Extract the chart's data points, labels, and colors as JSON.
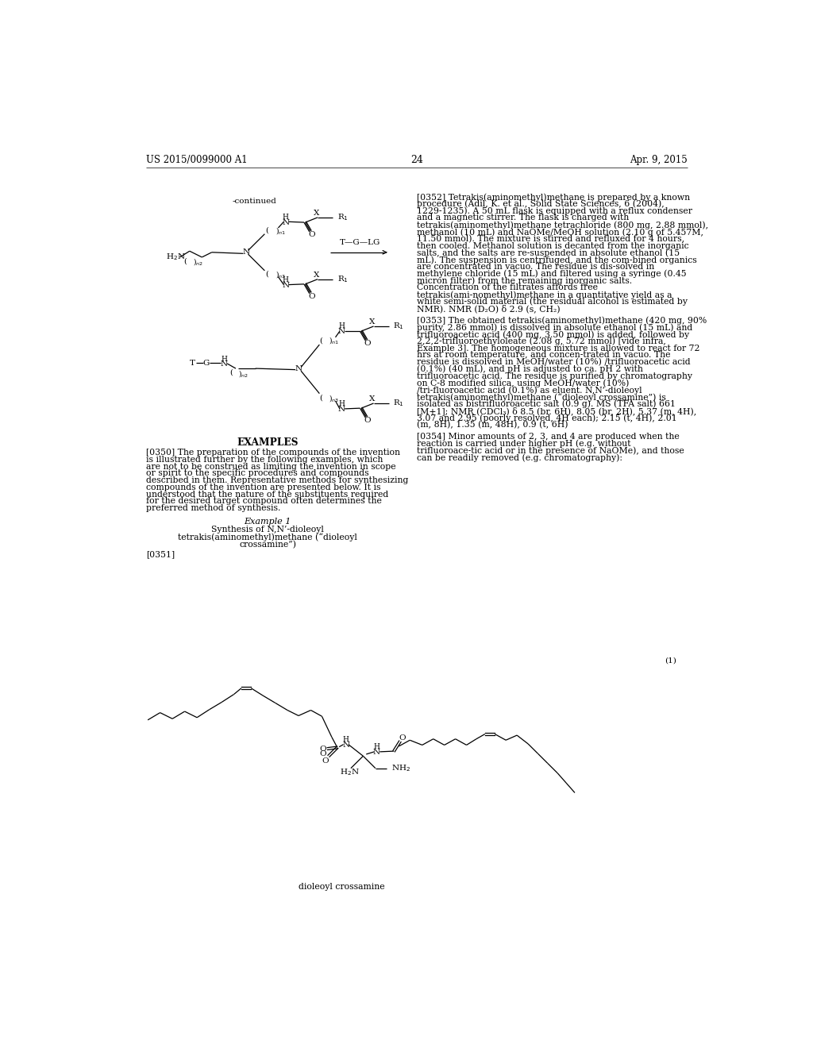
{
  "background_color": "#ffffff",
  "page_number": "24",
  "header_left": "US 2015/0099000 A1",
  "header_right": "Apr. 9, 2015",
  "para_0352": "[0352]   Tetrakis(aminomethyl)methane is prepared by a known procedure (Adil, K. et al., Solid State Sciences, 6 (2004), 1229-1235). A 50 mL flask is equipped with a reflux condenser and a magnetic stirrer. The flask is charged with tetrakis(aminomethyl)methane tetrachloride (800 mg, 2.88 mmol), methanol (10 mL) and NaOMe/MeOH solution (2.10 g of 5.457M, 11.50 mmol). The mixture is stirred and refluxed for 4 hours, then cooled. Methanol solution is decanted from the inorganic salts, and the salts are re-suspended in absolute ethanol (15 mL). The suspension is centrifuged, and the com-bined organics are concentrated in vacuo. The residue is dis-solved in methylene chloride (15 mL) and filtered using a syringe (0.45 micron filter) from the remaining inorganic salts. Concentration of the filtrates affords free tetrakis(ami-nomethyl)methane in a quantitative yield as a white semi-solid material (the residual alcohol is estimated by NMR). NMR (D₂O) δ 2.9 (s, CH₂)",
  "para_0353": "[0353]   The obtained tetrakis(aminomethyl)methane (420 mg, 90% purity, 2.86 mmol) is dissolved in absolute ethanol (15 mL) and trifluoroacetic acid (400 mg, 3.50 mmol) is added, followed by 2,2,2-trifluoroethyloleate (2.08 g, 5.72 mmol) [vide infra, Example 3]. The homogeneous mixture is allowed to react for 72 hrs at room temperature, and concen-trated in vacuo. The residue is dissolved in MeOH/water (10%) /trifluoroacetic acid (0.1%) (40 mL), and pH is adjusted to ca. pH 2 with trifluoroacetic acid. The residue is purified by chromatography on C-8 modified silica, using MeOH/water (10%) /tri-fluoroacetic acid (0.1%) as eluent. N,N’-dioleoyl  tetrakis(aminomethyl)methane (“dioleoyl crossamine”) is isolated as bistrifluoroacetic salt (0.9 g). MS (TFA salt) 661 [M+1]; NMR (CDCl₃) δ 8.5 (br. 6H), 8.05 (br, 2H), 5.37 (m, 4H), 3.07 and 2.95 (poorly resolved, 4H each); 2.15 (t, 4H), 2.01 (m, 8H), 1.35 (m, 48H), 0.9 (t, 6H)",
  "para_0354": "[0354]   Minor amounts of 2, 3, and 4 are produced when the reaction is carried under higher pH (e.g. without trifluoroace-tic acid or in the presence of NaOMe), and those can be readily removed (e.g. chromatography):",
  "para_0350": "[0350]   The preparation of the compounds of the invention is illustrated further by the following examples, which are not to be construed as limiting the invention in scope or spirit to the specific procedures and compounds described in them. Representative methods for synthesizing compounds of the invention are presented below. It is understood that the nature of the substituents required for the desired target compound often determines the preferred method of synthesis.",
  "para_0351": "[0351]",
  "compound_label": "(1)",
  "dioleoyl_label": "dioleoyl crossamine"
}
